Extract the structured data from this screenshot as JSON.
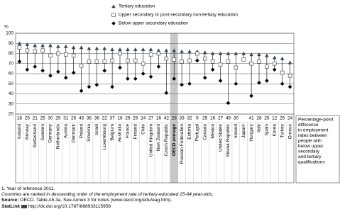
{
  "chart_data": {
    "type": "dot",
    "y_label": "%",
    "ylim": [
      20,
      100
    ],
    "yticks": [
      20,
      30,
      40,
      50,
      60,
      70,
      80,
      90,
      100
    ],
    "grid": true,
    "highlight": "OECD average",
    "categories": [
      "Iceland",
      "Norway",
      "Switzerland",
      "Sweden",
      "Germany",
      "Netherlands",
      "Austria",
      "Denmark",
      "Poland",
      "Slovenia",
      "Israel",
      "Luxembourg",
      "Belgium",
      "Australia",
      "France",
      "Finland",
      "Chile",
      "United Kingdom",
      "New Zealand",
      "Czech Republic",
      "OECD average",
      "Russian Federation",
      "Estonia",
      "Portugal",
      "Canada",
      "Mexico",
      "United States",
      "Slovak Republic",
      "Ireland",
      "Japan¹",
      "Hungary",
      "Italy",
      "Spain",
      "Korea",
      "Turkey",
      "Greece"
    ],
    "series": [
      {
        "name": "Tertiary education",
        "marker": "triangle",
        "color": "#3a4658",
        "values": [
          90,
          89,
          88,
          88,
          88,
          87,
          87,
          86,
          86,
          85,
          85,
          85,
          84,
          84,
          84,
          84,
          84,
          84,
          83,
          83,
          83,
          82,
          82,
          82,
          81,
          80,
          80,
          80,
          80,
          80,
          79,
          79,
          78,
          76,
          75,
          71
        ]
      },
      {
        "name": "Upper secondary or post-secondary non-tertiary education",
        "marker": "square",
        "color": "#666666",
        "values": [
          86,
          83,
          82,
          83,
          78,
          80,
          79,
          78,
          68,
          72,
          72,
          72,
          73,
          80,
          73,
          73,
          70,
          79,
          80,
          75,
          74,
          72,
          73,
          80,
          75,
          72,
          69,
          72,
          66,
          74,
          70,
          72,
          67,
          70,
          61,
          58
        ]
      },
      {
        "name": "Below upper secondary education",
        "marker": "diamond",
        "color": "#000000",
        "values": [
          72,
          64,
          67,
          63,
          58,
          62,
          56,
          61,
          43,
          47,
          49,
          63,
          47,
          66,
          55,
          55,
          60,
          57,
          67,
          41,
          55,
          49,
          50,
          73,
          56,
          64,
          53,
          31,
          50,
          null,
          38,
          51,
          53,
          64,
          50,
          47
        ]
      }
    ],
    "differences": {
      "label_lines": [
        "Percentage-point",
        "difference",
        "in employment",
        "rates between",
        "people with",
        "below upper",
        "secondary",
        "and tertiary",
        "qualifications"
      ],
      "values": [
        18,
        25,
        21,
        25,
        30,
        25,
        31,
        25,
        43,
        38,
        36,
        22,
        37,
        18,
        29,
        29,
        24,
        27,
        16,
        42,
        28,
        33,
        32,
        9,
        25,
        16,
        27,
        49,
        30,
        null,
        41,
        28,
        25,
        12,
        25,
        24
      ]
    }
  },
  "footnotes": {
    "note1": "1. Year of reference 2011.",
    "ranking": "Countries are ranked in descending order of the employment rate of tertiary-educated 25-64 year-olds.",
    "source_label": "Source:",
    "source_text": "OECD. Table A5.3a. See Annex 3 for notes (www.oecd.org/edu/eag.htm).",
    "statlink_label": "StatLink",
    "statlink_url": "http://dx.doi.org/10.1787/888933115958"
  }
}
